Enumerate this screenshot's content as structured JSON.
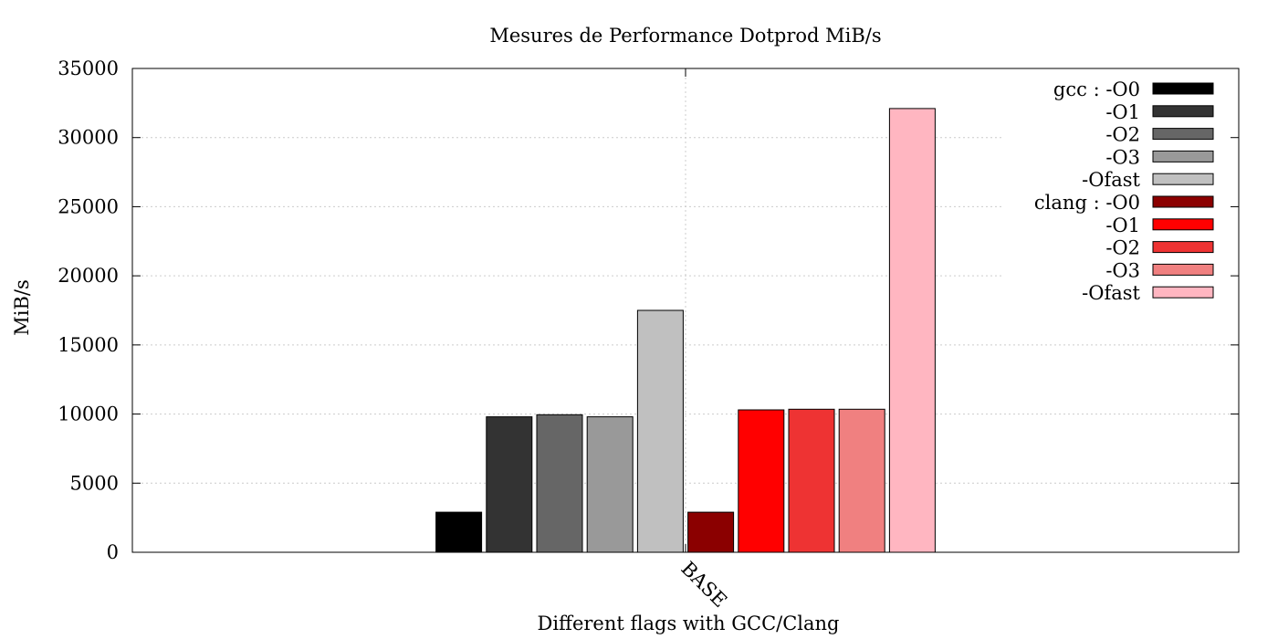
{
  "chart_data": {
    "type": "bar",
    "title": "Mesures de Performance Dotprod MiB/s",
    "xlabel": "Different flags with GCC/Clang",
    "ylabel": "MiB/s",
    "categories": [
      "BASE"
    ],
    "ylim": [
      0,
      35000
    ],
    "yticks": [
      0,
      5000,
      10000,
      15000,
      20000,
      25000,
      30000,
      35000
    ],
    "grid": true,
    "legend_position": "top-right",
    "series": [
      {
        "name": "gcc : -O0",
        "values": [
          2900
        ],
        "color": "#000000"
      },
      {
        "name": "-O1",
        "values": [
          9800
        ],
        "color": "#333333"
      },
      {
        "name": "-O2",
        "values": [
          9950
        ],
        "color": "#666666"
      },
      {
        "name": "-O3",
        "values": [
          9800
        ],
        "color": "#999999"
      },
      {
        "name": "-Ofast",
        "values": [
          17500
        ],
        "color": "#c0c0c0"
      },
      {
        "name": "clang : -O0",
        "values": [
          2900
        ],
        "color": "#8b0000"
      },
      {
        "name": "-O1",
        "values": [
          10300
        ],
        "color": "#ff0000"
      },
      {
        "name": "-O2",
        "values": [
          10350
        ],
        "color": "#ee3333"
      },
      {
        "name": "-O3",
        "values": [
          10350
        ],
        "color": "#f08080"
      },
      {
        "name": "-Ofast",
        "values": [
          32100
        ],
        "color": "#ffb6c1"
      }
    ]
  }
}
